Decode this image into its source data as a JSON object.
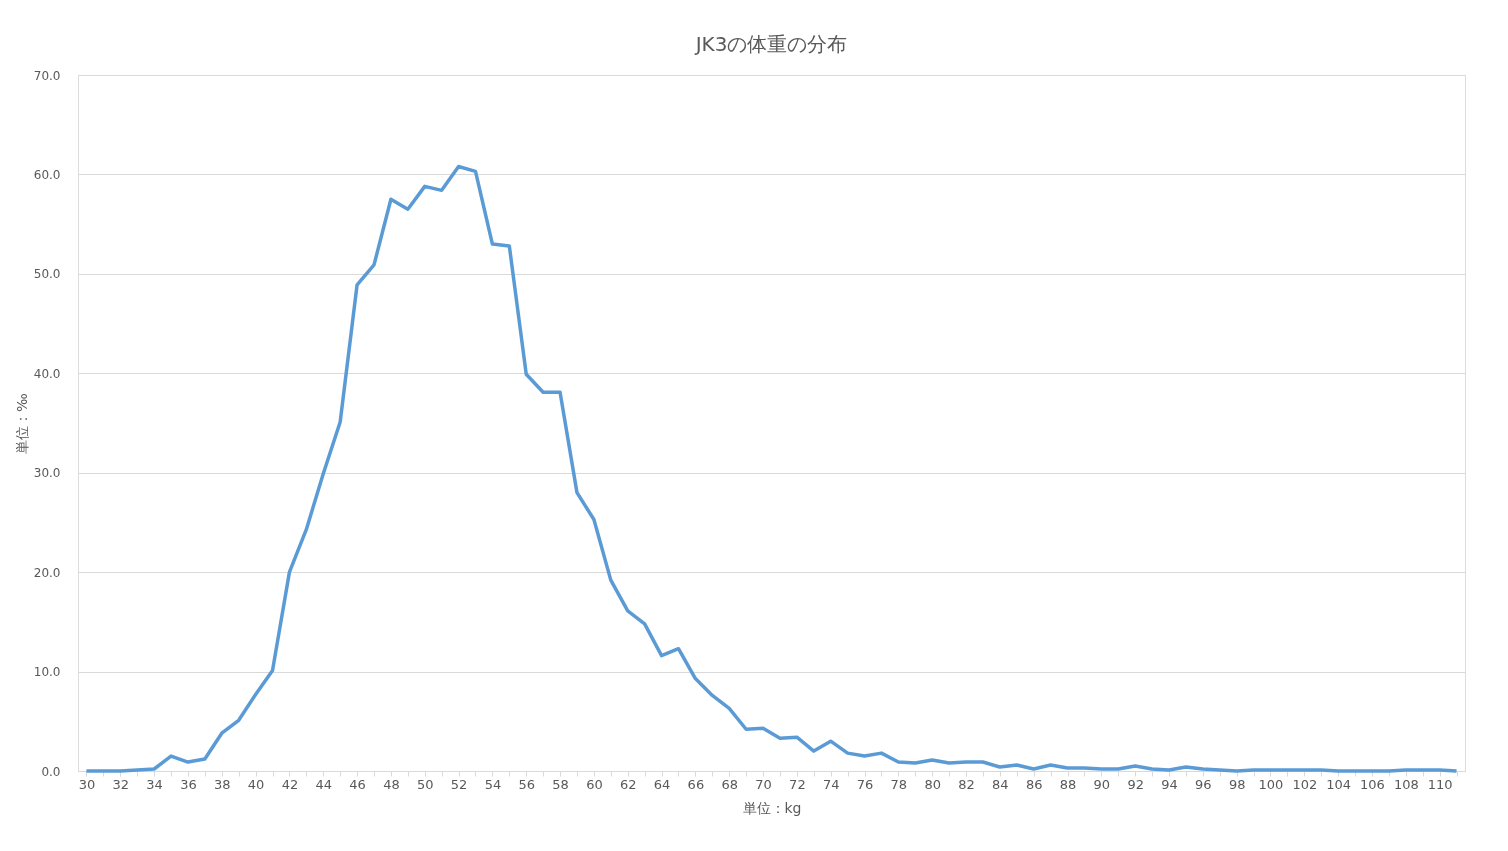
{
  "chart_data": {
    "type": "line",
    "title": "JK3の体重の分布",
    "xlabel": "単位：kg",
    "ylabel": "単位：‰",
    "categories": [
      "30",
      null,
      "32",
      null,
      "34",
      null,
      "36",
      null,
      "38",
      null,
      "40",
      null,
      "42",
      null,
      "44",
      null,
      "46",
      null,
      "48",
      null,
      "50",
      null,
      "52",
      null,
      "54",
      null,
      "56",
      null,
      "58",
      null,
      "60",
      null,
      "62",
      null,
      "64",
      null,
      "66",
      null,
      "68",
      null,
      "70",
      null,
      "72",
      null,
      "74",
      null,
      "76",
      null,
      "78",
      null,
      "80",
      null,
      "82",
      null,
      "84",
      null,
      "86",
      null,
      "88",
      null,
      "90",
      null,
      "92",
      null,
      "94",
      null,
      "96",
      null,
      "98",
      null,
      "100",
      null,
      "102",
      null,
      "104",
      null,
      "106",
      null,
      "108",
      null,
      "110",
      null
    ],
    "series": [
      {
        "color": "#5b9bd5",
        "values": [
          0,
          0,
          0,
          0.1,
          0.2,
          1.5,
          0.9,
          1.2,
          3.8,
          5.1,
          7.7,
          10.1,
          20.0,
          24.3,
          29.9,
          35.1,
          48.9,
          50.9,
          57.5,
          56.5,
          58.8,
          58.4,
          60.8,
          60.3,
          53.0,
          52.8,
          39.9,
          38.1,
          38.1,
          28.0,
          25.3,
          19.2,
          16.1,
          14.8,
          11.6,
          12.3,
          9.3,
          7.6,
          6.3,
          4.2,
          4.3,
          3.3,
          3.4,
          2.0,
          3.0,
          1.8,
          1.5,
          1.8,
          0.9,
          0.8,
          1.1,
          0.8,
          0.9,
          0.9,
          0.4,
          0.6,
          0.2,
          0.6,
          0.3,
          0.3,
          0.2,
          0.2,
          0.5,
          0.2,
          0.1,
          0.4,
          0.2,
          0.1,
          0.0,
          0.1,
          0.1,
          0.1,
          0.1,
          0.1,
          0.0,
          0.0,
          0.0,
          0.0,
          0.1,
          0.1,
          0.1,
          0.0
        ]
      }
    ],
    "ylim": [
      0,
      70
    ],
    "yticks": [
      {
        "value": 0,
        "label": "0.0"
      },
      {
        "value": 10,
        "label": "10.0"
      },
      {
        "value": 20,
        "label": "20.0"
      },
      {
        "value": 30,
        "label": "30.0"
      },
      {
        "value": 40,
        "label": "40.0"
      },
      {
        "value": 50,
        "label": "50.0"
      },
      {
        "value": 60,
        "label": "60.0"
      },
      {
        "value": 70,
        "label": "70.0"
      }
    ],
    "grid": "y",
    "marker": "none",
    "line_style": "solid"
  }
}
